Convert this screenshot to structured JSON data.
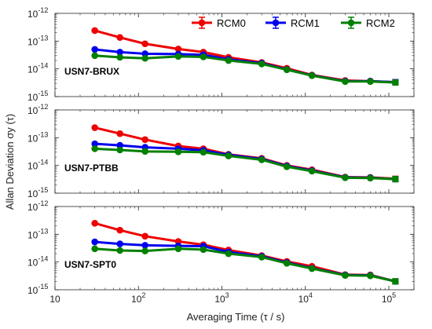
{
  "figure": {
    "xlabel": "Averaging Time (τ / s)",
    "ylabel": "Allan Deviation σy (τ)"
  },
  "legend": {
    "placement": "top-right",
    "entries": [
      "RCM0",
      "RCM1",
      "RCM2"
    ]
  },
  "colors": {
    "RCM0": "#ee0000",
    "RCM1": "#0000ee",
    "RCM2": "#008000"
  },
  "chart_data": [
    {
      "type": "line",
      "title": "USN7-BRUX",
      "xscale": "log",
      "yscale": "log",
      "xlim": [
        10,
        200000
      ],
      "ylim": [
        1e-15,
        1e-12
      ],
      "x": [
        30,
        60,
        120,
        300,
        600,
        1200,
        3000,
        6000,
        12000,
        30000,
        60000,
        120000
      ],
      "series": [
        {
          "name": "RCM0",
          "values": [
            2.4e-13,
            1.35e-13,
            8e-14,
            5.2e-14,
            4e-14,
            2.6e-14,
            1.7e-14,
            1.05e-14,
            6e-15,
            3.8e-15,
            3.6e-15,
            3.3e-15
          ]
        },
        {
          "name": "RCM1",
          "values": [
            5e-14,
            4e-14,
            3.5e-14,
            3.4e-14,
            3.2e-14,
            2.2e-14,
            1.6e-14,
            9.5e-15,
            5.8e-15,
            3.6e-15,
            3.6e-15,
            3.3e-15
          ]
        },
        {
          "name": "RCM2",
          "values": [
            3e-14,
            2.6e-14,
            2.4e-14,
            2.8e-14,
            2.7e-14,
            2e-14,
            1.5e-14,
            9.3e-15,
            5.7e-15,
            3.5e-15,
            3.5e-15,
            3.2e-15
          ]
        }
      ]
    },
    {
      "type": "line",
      "title": "USN7-PTBB",
      "xscale": "log",
      "yscale": "log",
      "xlim": [
        10,
        200000
      ],
      "ylim": [
        1e-15,
        1e-12
      ],
      "x": [
        30,
        60,
        120,
        300,
        600,
        1200,
        3000,
        6000,
        12000,
        30000,
        60000,
        120000
      ],
      "series": [
        {
          "name": "RCM0",
          "values": [
            2.3e-13,
            1.4e-13,
            8.5e-14,
            5e-14,
            4e-14,
            2.5e-14,
            1.8e-14,
            1e-14,
            7e-15,
            3.8e-15,
            3.7e-15,
            3.3e-15
          ]
        },
        {
          "name": "RCM1",
          "values": [
            6e-14,
            5.3e-14,
            4.5e-14,
            4e-14,
            3.5e-14,
            2.4e-14,
            1.7e-14,
            9.5e-15,
            6.5e-15,
            3.7e-15,
            3.6e-15,
            3.2e-15
          ]
        },
        {
          "name": "RCM2",
          "values": [
            4e-14,
            3.6e-14,
            3.2e-14,
            3.1e-14,
            3e-14,
            2.2e-14,
            1.6e-14,
            9e-15,
            6.2e-15,
            3.6e-15,
            3.5e-15,
            3.2e-15
          ]
        }
      ]
    },
    {
      "type": "line",
      "title": "USN7-SPT0",
      "xscale": "log",
      "yscale": "log",
      "xlim": [
        10,
        200000
      ],
      "ylim": [
        1e-15,
        1e-12
      ],
      "x": [
        30,
        60,
        120,
        300,
        600,
        1200,
        3000,
        6000,
        12000,
        30000,
        60000,
        120000
      ],
      "series": [
        {
          "name": "RCM0",
          "values": [
            2.5e-13,
            1.4e-13,
            8.5e-14,
            5.5e-14,
            4.2e-14,
            2.7e-14,
            1.7e-14,
            1.05e-14,
            7e-15,
            3.5e-15,
            3.4e-15,
            2e-15
          ]
        },
        {
          "name": "RCM1",
          "values": [
            5.3e-14,
            4.5e-14,
            4e-14,
            3.8e-14,
            3.7e-14,
            2.3e-14,
            1.6e-14,
            9.5e-15,
            6e-15,
            3.4e-15,
            3.3e-15,
            2e-15
          ]
        },
        {
          "name": "RCM2",
          "values": [
            3e-14,
            2.6e-14,
            2.5e-14,
            3e-14,
            2.8e-14,
            2e-14,
            1.5e-14,
            9e-15,
            5.8e-15,
            3.3e-15,
            3.2e-15,
            2e-15
          ]
        }
      ]
    }
  ]
}
